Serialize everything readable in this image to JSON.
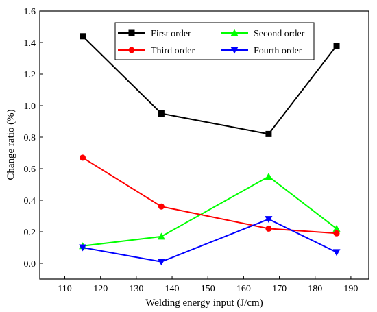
{
  "chart_data": {
    "type": "line",
    "title": "",
    "xlabel": "Welding energy input (J/cm)",
    "ylabel": "Change ratio (%)",
    "xlim": [
      103,
      195
    ],
    "ylim": [
      -0.1,
      1.6
    ],
    "xticks": [
      110,
      120,
      130,
      140,
      150,
      160,
      170,
      180,
      190
    ],
    "yticks": [
      0.0,
      0.2,
      0.4,
      0.6,
      0.8,
      1.0,
      1.2,
      1.4,
      1.6
    ],
    "ytick_labels": [
      "0.0",
      "0.2",
      "0.4",
      "0.6",
      "0.8",
      "1.0",
      "1.2",
      "1.4",
      "1.6"
    ],
    "grid": false,
    "legend_position": "top-right",
    "x": [
      115,
      137,
      167,
      186
    ],
    "series": [
      {
        "name": "First order",
        "color": "#000000",
        "marker": "square",
        "values": [
          1.44,
          0.95,
          0.82,
          1.38
        ]
      },
      {
        "name": "Second order",
        "color": "#00ff00",
        "marker": "triangle-up",
        "values": [
          0.11,
          0.17,
          0.55,
          0.22
        ]
      },
      {
        "name": "Third order",
        "color": "#ff0000",
        "marker": "circle",
        "values": [
          0.67,
          0.36,
          0.22,
          0.19
        ]
      },
      {
        "name": "Fourth order",
        "color": "#0000ff",
        "marker": "triangle-down",
        "values": [
          0.1,
          0.01,
          0.28,
          0.07
        ]
      }
    ]
  }
}
